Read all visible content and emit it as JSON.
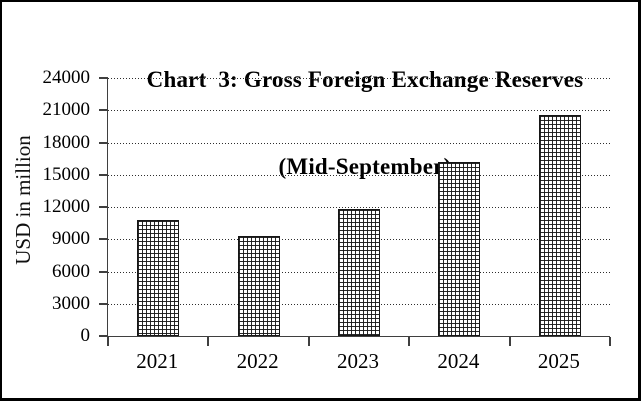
{
  "figure": {
    "title_line1": "Chart  3: Gross Foreign Exchange Reserves",
    "title_line2": "(Mid-September)"
  },
  "chart_data": {
    "type": "bar",
    "title": "Chart 3: Gross Foreign Exchange Reserves (Mid-September)",
    "categories": [
      "2021",
      "2022",
      "2023",
      "2024",
      "2025"
    ],
    "values": [
      10800,
      9300,
      11800,
      16150,
      20600
    ],
    "xlabel": "",
    "ylabel": "USD in million",
    "ylim": [
      0,
      24000
    ],
    "yticks": [
      0,
      3000,
      6000,
      9000,
      12000,
      15000,
      18000,
      21000,
      24000
    ],
    "grid": "horizontal-dotted",
    "legend": "none",
    "bar_fill": "small-grid-crosshatch",
    "colors": {
      "background": "#ffffff",
      "figure_border": "#000000",
      "axis": "#3f3f3f",
      "gridline": "#2e2e2e",
      "bar_pattern": "#161616",
      "text": "#000000"
    }
  }
}
